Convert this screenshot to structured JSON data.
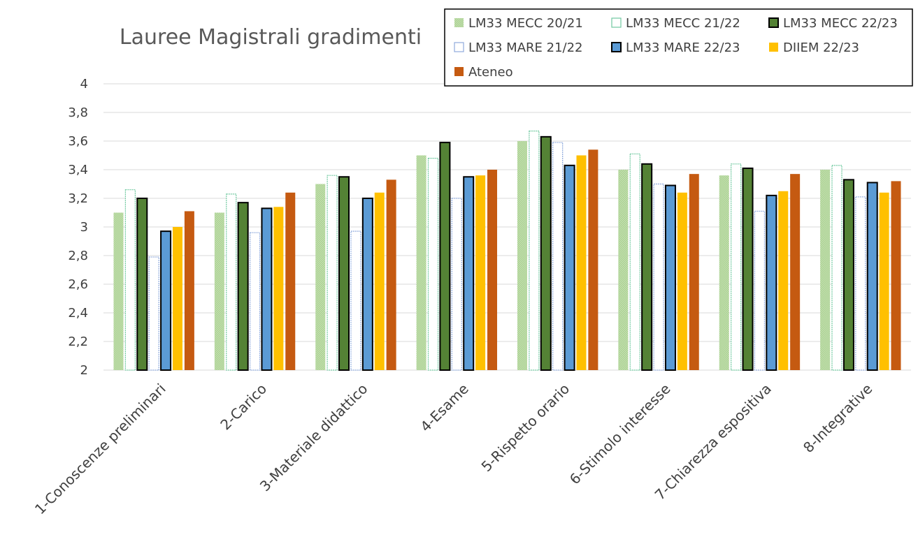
{
  "chart_data": {
    "type": "bar",
    "title": "Lauree Magistrali gradimenti",
    "categories": [
      "1-Conoscenze preliminari",
      "2-Carico",
      "3-Materiale didattico",
      "4-Esame",
      "5-Rispetto orario",
      "6-Stimolo interesse",
      "7-Chiarezza espositiva",
      "8-Integrative"
    ],
    "ylim": [
      2,
      4
    ],
    "yticks": [
      "2",
      "2,2",
      "2,4",
      "2,6",
      "2,8",
      "3",
      "3,2",
      "3,4",
      "3,6",
      "3,8",
      "4"
    ],
    "grid": true,
    "legend_position": "top-right",
    "series": [
      {
        "name": "LM33 MECC 20/21",
        "values": [
          3.1,
          3.1,
          3.3,
          3.5,
          3.6,
          3.4,
          3.36,
          3.4
        ],
        "color": "#a9d18e",
        "style": "pattern"
      },
      {
        "name": "LM33 MECC 21/22",
        "values": [
          3.26,
          3.23,
          3.36,
          3.48,
          3.67,
          3.51,
          3.44,
          3.43
        ],
        "color": "#70c9a0",
        "style": "outline"
      },
      {
        "name": "LM33 MECC 22/23",
        "values": [
          3.2,
          3.17,
          3.35,
          3.59,
          3.63,
          3.44,
          3.41,
          3.33
        ],
        "color": "#548235",
        "style": "solid-border"
      },
      {
        "name": "LM33 MARE 21/22",
        "values": [
          2.79,
          2.96,
          2.97,
          3.2,
          3.59,
          3.3,
          3.11,
          3.21
        ],
        "color": "#8faadc",
        "style": "outline"
      },
      {
        "name": "LM33 MARE 22/23",
        "values": [
          2.97,
          3.13,
          3.2,
          3.35,
          3.43,
          3.29,
          3.22,
          3.31
        ],
        "color": "#5b9bd5",
        "style": "solid-border"
      },
      {
        "name": "DIIEM 22/23",
        "values": [
          3.0,
          3.14,
          3.24,
          3.36,
          3.5,
          3.24,
          3.25,
          3.24
        ],
        "color": "#ffc000",
        "style": "solid"
      },
      {
        "name": "Ateneo",
        "values": [
          3.11,
          3.24,
          3.33,
          3.4,
          3.54,
          3.37,
          3.37,
          3.32
        ],
        "color": "#c55a11",
        "style": "solid"
      }
    ]
  }
}
